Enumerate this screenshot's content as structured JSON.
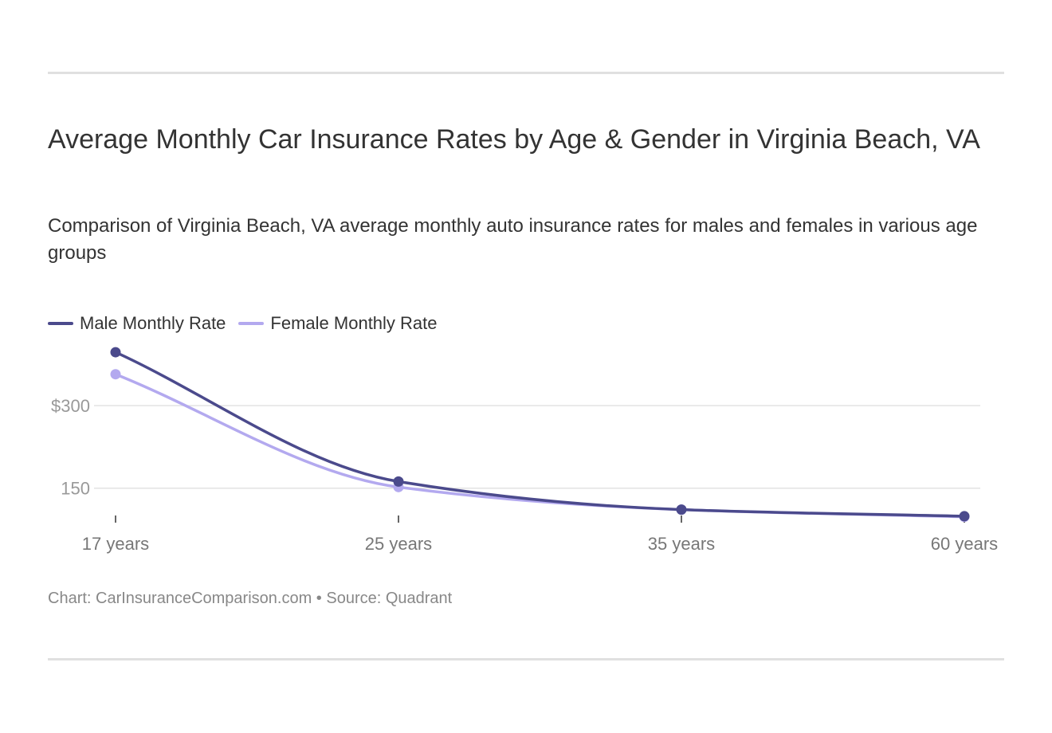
{
  "title": "Average Monthly Car Insurance Rates by Age & Gender in Virginia Beach, VA",
  "subtitle": "Comparison of Virginia Beach, VA average monthly auto insurance rates for males and females in various age groups",
  "source": "Chart: CarInsuranceComparison.com • Source: Quadrant",
  "colors": {
    "male": "#4b4a8c",
    "female": "#b3a9ef",
    "grid": "#e3e3e3",
    "axis": "#333333"
  },
  "chart_data": {
    "type": "line",
    "title": "Average Monthly Car Insurance Rates by Age & Gender in Virginia Beach, VA",
    "categories": [
      "17 years",
      "25 years",
      "35 years",
      "60 years"
    ],
    "series": [
      {
        "name": "Male Monthly Rate",
        "values": [
          397,
          162,
          111,
          99
        ]
      },
      {
        "name": "Female Monthly Rate",
        "values": [
          357,
          152,
          111,
          98
        ]
      }
    ],
    "y_ticks": [
      150,
      300
    ],
    "y_tick_labels": [
      "150",
      "$300"
    ],
    "ylim": [
      96,
      400
    ],
    "xlabel": "",
    "ylabel": "",
    "grid": true,
    "legend": "top-left"
  }
}
